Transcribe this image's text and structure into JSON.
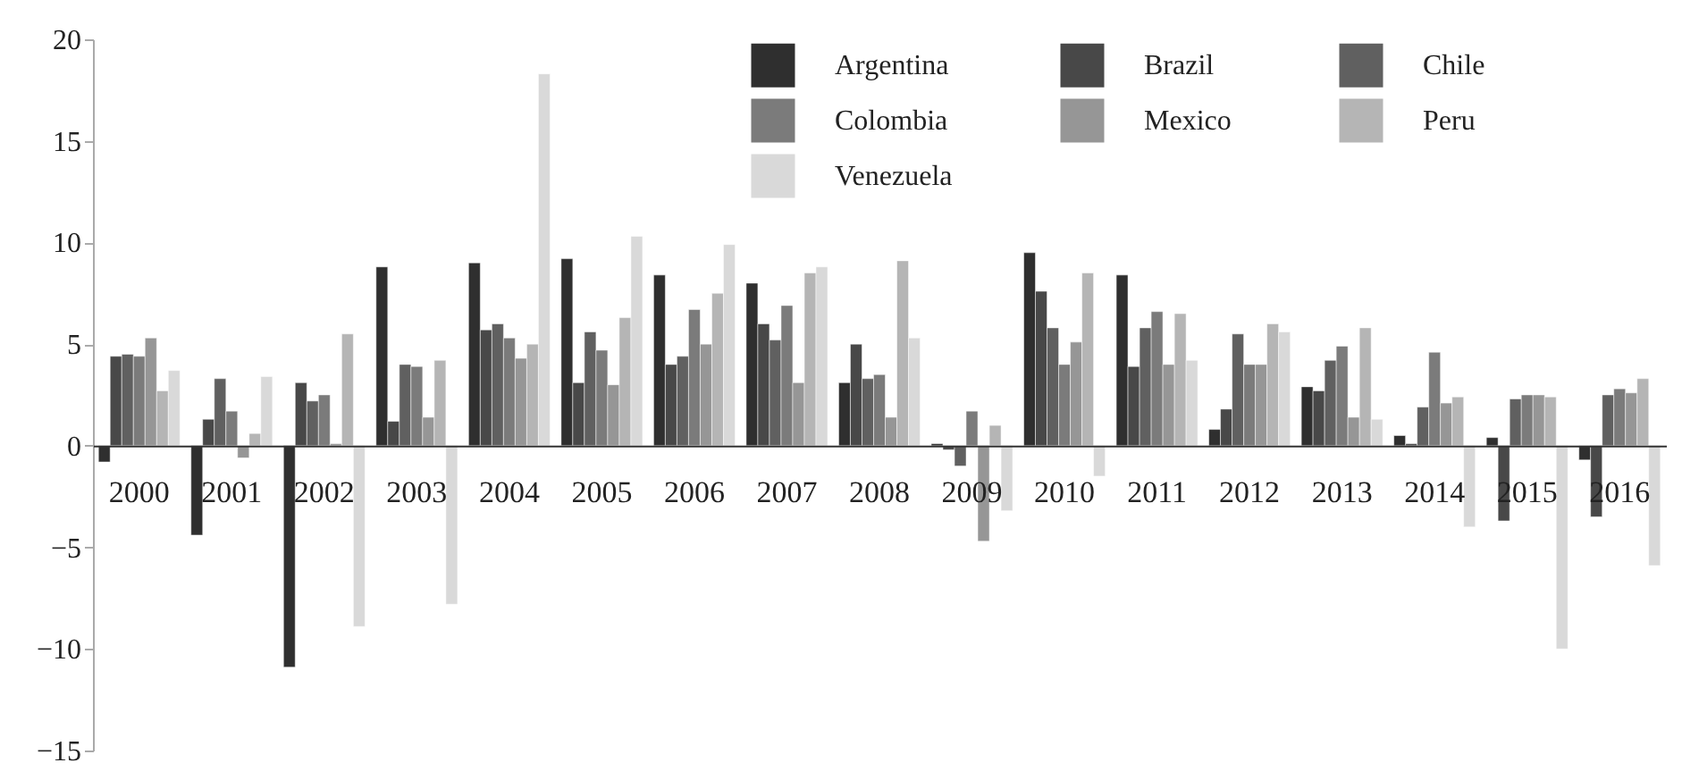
{
  "chart_data": {
    "type": "bar",
    "categories": [
      "2000",
      "2001",
      "2002",
      "2003",
      "2004",
      "2005",
      "2006",
      "2007",
      "2008",
      "2009",
      "2010",
      "2011",
      "2012",
      "2013",
      "2014",
      "2015",
      "2016"
    ],
    "series": [
      {
        "name": "Argentina",
        "color": "#2f2f2f",
        "values": [
          -0.8,
          -4.4,
          -10.9,
          8.8,
          9.0,
          9.2,
          8.4,
          8.0,
          3.1,
          0.1,
          9.5,
          8.4,
          0.8,
          2.9,
          0.5,
          0.4,
          -0.7
        ]
      },
      {
        "name": "Brazil",
        "color": "#484848",
        "values": [
          4.4,
          1.3,
          3.1,
          1.2,
          5.7,
          3.1,
          4.0,
          6.0,
          5.0,
          -0.2,
          7.6,
          3.9,
          1.8,
          2.7,
          0.1,
          -3.7,
          -3.5
        ]
      },
      {
        "name": "Chile",
        "color": "#606060",
        "values": [
          4.5,
          3.3,
          2.2,
          4.0,
          6.0,
          5.6,
          4.4,
          5.2,
          3.3,
          -1.0,
          5.8,
          5.8,
          5.5,
          4.2,
          1.9,
          2.3,
          2.5
        ]
      },
      {
        "name": "Colombia",
        "color": "#7b7b7b",
        "values": [
          4.4,
          1.7,
          2.5,
          3.9,
          5.3,
          4.7,
          6.7,
          6.9,
          3.5,
          1.7,
          4.0,
          6.6,
          4.0,
          4.9,
          4.6,
          2.5,
          2.8
        ]
      },
      {
        "name": "Mexico",
        "color": "#969696",
        "values": [
          5.3,
          -0.6,
          0.1,
          1.4,
          4.3,
          3.0,
          5.0,
          3.1,
          1.4,
          -4.7,
          5.1,
          4.0,
          4.0,
          1.4,
          2.1,
          2.5,
          2.6
        ]
      },
      {
        "name": "Peru",
        "color": "#b5b5b5",
        "values": [
          2.7,
          0.6,
          5.5,
          4.2,
          5.0,
          6.3,
          7.5,
          8.5,
          9.1,
          1.0,
          8.5,
          6.5,
          6.0,
          5.8,
          2.4,
          2.4,
          3.3
        ]
      },
      {
        "name": "Venezuela",
        "color": "#d9d9d9",
        "values": [
          3.7,
          3.4,
          -8.9,
          -7.8,
          18.3,
          10.3,
          9.9,
          8.8,
          5.3,
          -3.2,
          -1.5,
          4.2,
          5.6,
          1.3,
          -4.0,
          -10.0,
          -5.9
        ]
      }
    ],
    "ylim": [
      -15,
      20
    ],
    "yticks": [
      -15,
      -10,
      -5,
      0,
      5,
      10,
      15,
      20
    ],
    "legend": "top right"
  }
}
